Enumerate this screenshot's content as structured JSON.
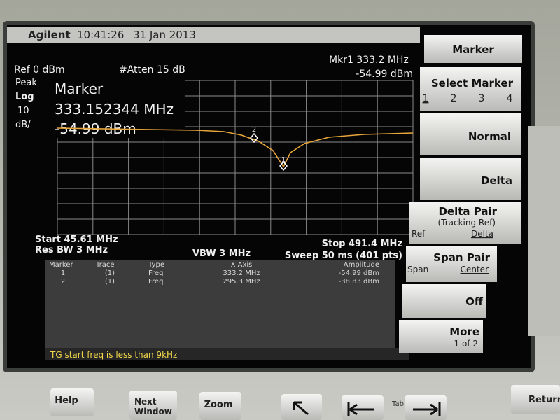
{
  "header": {
    "brand": "Agilent",
    "time": "10:41:26",
    "date": "31 Jan 2013"
  },
  "top": {
    "ref": "Ref 0 dBm",
    "atten": "#Atten 15 dB",
    "marker_freq": "Mkr1 333.2 MHz",
    "marker_amp": "-54.99 dBm"
  },
  "scale": {
    "detector": "Peak",
    "mode": "Log",
    "per_div": "10",
    "unit": "dB/"
  },
  "marker_box": {
    "title": "Marker",
    "freq": "333.152344 MHz",
    "amp": "-54.99 dBm"
  },
  "plot_markers": [
    "2",
    "1"
  ],
  "bottom": {
    "start": "Start 45.61 MHz",
    "stop": "Stop 491.4 MHz",
    "rbw": "Res BW 3 MHz",
    "vbw": "VBW 3 MHz",
    "sweep": "Sweep 50 ms (401 pts)"
  },
  "table": {
    "headers": [
      "Marker",
      "Trace",
      "Type",
      "X Axis",
      "Amplitude"
    ],
    "rows": [
      [
        "1",
        "(1)",
        "Freq",
        "333.2 MHz",
        "-54.99 dBm"
      ],
      [
        "2",
        "(1)",
        "Freq",
        "295.3 MHz",
        "-38.83 dBm"
      ]
    ]
  },
  "status": "TG start freq is less than 9kHz",
  "softkeys": {
    "title": "Marker",
    "select": "Select Marker",
    "select_options": [
      "1",
      "2",
      "3",
      "4"
    ],
    "normal": "Normal",
    "delta": "Delta",
    "delta_pair": "Delta Pair",
    "tracking": "(Tracking Ref)",
    "dp_ref": "Ref",
    "dp_delta": "Delta",
    "span_pair": "Span Pair",
    "sp_span": "Span",
    "sp_center": "Center",
    "off": "Off",
    "more": "More",
    "more_page": "1 of 2"
  },
  "buttons": {
    "help": "Help",
    "next": [
      "Next",
      "Window"
    ],
    "zoom": "Zoom",
    "tab": "Tab",
    "return": "Return"
  }
}
